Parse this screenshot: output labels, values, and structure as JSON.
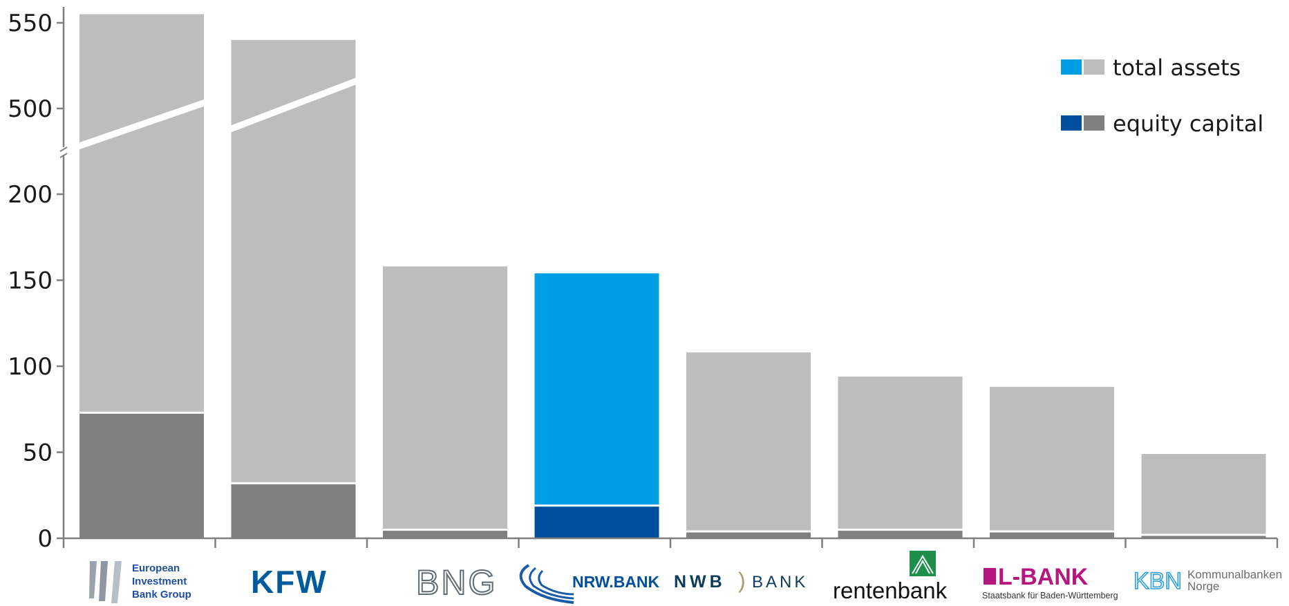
{
  "chart_data": {
    "type": "bar",
    "stacked": true,
    "broken_axis": true,
    "categories": [
      "European Investment Bank Group",
      "KFW",
      "BNG",
      "NRW.BANK",
      "NWB BANK",
      "rentenbank",
      "L-BANK",
      "KBN Kommunalbanken Norge"
    ],
    "highlight_index": 3,
    "series": [
      {
        "name": "total assets",
        "values": [
          555,
          540,
          158,
          154,
          108,
          94,
          88,
          49
        ]
      },
      {
        "name": "equity capital",
        "values": [
          73,
          32,
          5,
          19,
          4,
          5,
          4,
          2
        ]
      }
    ],
    "y_ticks_lower": [
      "0",
      "50",
      "100",
      "150",
      "200"
    ],
    "y_ticks_upper": [
      "500",
      "550"
    ],
    "lower_range": [
      0,
      230
    ],
    "upper_range": [
      480,
      560
    ],
    "legend": {
      "placement": "top-right",
      "entries": [
        "total assets",
        "equity capital"
      ]
    },
    "colors": {
      "total_highlight": "#009fe3",
      "equity_highlight": "#004f9f",
      "total_other": "#bdbdbd",
      "equity_other": "#808080",
      "axis": "#7f7f7f"
    }
  },
  "logos": {
    "eib": [
      "European",
      "Investment",
      "Bank Group"
    ],
    "kfw": "KFW",
    "bng": "BNG",
    "nrw": "NRW.BANK",
    "nwb_left": "NWB",
    "nwb_right": "BANK",
    "renten": "rentenbank",
    "lbank": "L-BANK",
    "lbank_sub": "Staatsbank für Baden-Württemberg",
    "kbn": "KBN",
    "kbn_sub1": "Kommunalbanken",
    "kbn_sub2": "Norge"
  }
}
